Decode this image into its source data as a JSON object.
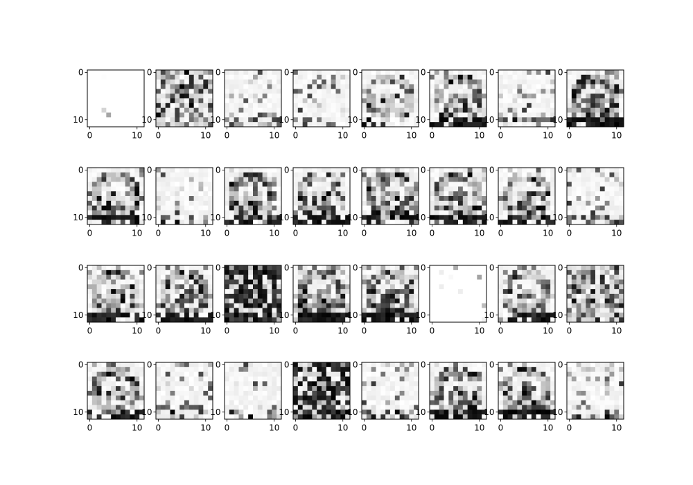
{
  "chart_data": {
    "type": "heatmap",
    "description_layout": "grid",
    "rows": 4,
    "cols": 8,
    "matrix_size": 12,
    "x_ticks": [
      "0",
      "10"
    ],
    "y_ticks": [
      "0",
      "10"
    ],
    "colormap": "gray_r",
    "value_range": [
      0,
      1
    ],
    "grid": false,
    "panels_seed": [
      {
        "style": "blank",
        "seed": 1,
        "density": 0.02
      },
      {
        "style": "noisy",
        "seed": 2,
        "density": 0.55
      },
      {
        "style": "light",
        "seed": 3,
        "density": 0.12
      },
      {
        "style": "light",
        "seed": 4,
        "density": 0.14
      },
      {
        "style": "ring",
        "seed": 5,
        "density": 0.18
      },
      {
        "style": "ring",
        "seed": 6,
        "density": 0.45
      },
      {
        "style": "light",
        "seed": 7,
        "density": 0.18
      },
      {
        "style": "ring",
        "seed": 8,
        "density": 0.6
      },
      {
        "style": "ring",
        "seed": 9,
        "density": 0.45
      },
      {
        "style": "light",
        "seed": 10,
        "density": 0.16
      },
      {
        "style": "ring",
        "seed": 11,
        "density": 0.45
      },
      {
        "style": "ring",
        "seed": 12,
        "density": 0.35
      },
      {
        "style": "ring",
        "seed": 13,
        "density": 0.45
      },
      {
        "style": "ring",
        "seed": 14,
        "density": 0.45
      },
      {
        "style": "ring",
        "seed": 15,
        "density": 0.35
      },
      {
        "style": "light",
        "seed": 16,
        "density": 0.16
      },
      {
        "style": "ring",
        "seed": 17,
        "density": 0.4
      },
      {
        "style": "ring",
        "seed": 18,
        "density": 0.5
      },
      {
        "style": "dark",
        "seed": 19,
        "density": 0.75
      },
      {
        "style": "ring",
        "seed": 20,
        "density": 0.65
      },
      {
        "style": "ring",
        "seed": 21,
        "density": 0.55
      },
      {
        "style": "blank",
        "seed": 22,
        "density": 0.04
      },
      {
        "style": "ring",
        "seed": 23,
        "density": 0.3
      },
      {
        "style": "noisy",
        "seed": 24,
        "density": 0.6
      },
      {
        "style": "ring",
        "seed": 25,
        "density": 0.35
      },
      {
        "style": "light",
        "seed": 26,
        "density": 0.18
      },
      {
        "style": "light",
        "seed": 27,
        "density": 0.1
      },
      {
        "style": "dark",
        "seed": 28,
        "density": 0.7
      },
      {
        "style": "light",
        "seed": 29,
        "density": 0.18
      },
      {
        "style": "ring",
        "seed": 30,
        "density": 0.45
      },
      {
        "style": "ring",
        "seed": 31,
        "density": 0.55
      },
      {
        "style": "light",
        "seed": 32,
        "density": 0.14
      }
    ]
  }
}
